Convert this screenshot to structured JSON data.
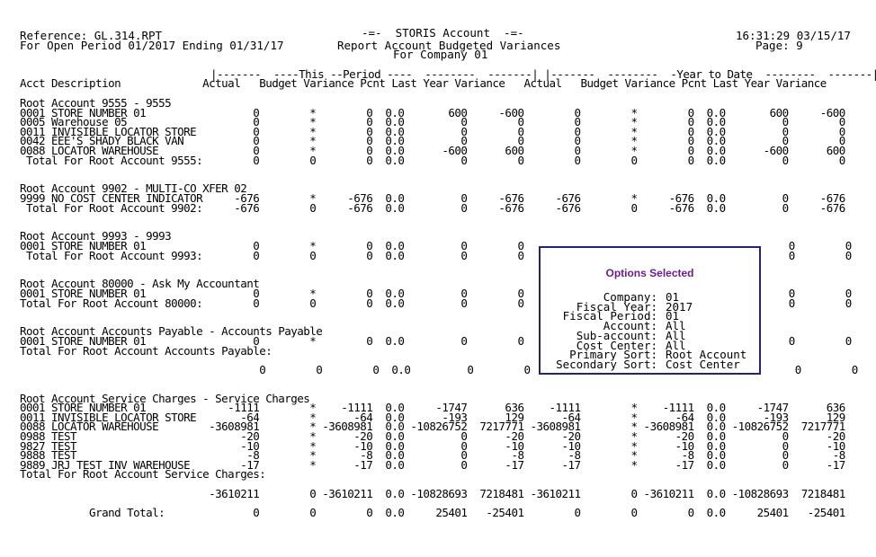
{
  "report": {
    "reference": "Reference: GL.314.RPT",
    "period": "For Open Period 01/2017 Ending 01/31/17",
    "title": "-=-  STORIS Account  -=-",
    "subtitle": "Report Account Budgeted Variances",
    "company": "For Company 01",
    "timestamp": "16:31:29 03/15/17",
    "page": "Page: 9",
    "header_bands": "|-------  ----This --Period ----  --------  -------| |-------  --------  -Year to Date  --------  -------|",
    "column_headers": "Acct Description             Actual   Budget Variance Pcnt Last Year Variance   Actual   Budget Variance Pcnt Last Year Variance",
    "lines": [
      "Root Account 9555 - 9555",
      "0001 STORE NUMBER 01                 0        *        0  0.0       600     -600        0        *        0  0.0       600     -600",
      "0005 Warehouse 05                    0        *        0  0.0         0        0        0        *        0  0.0         0        0",
      "0011 INVISIBLE LOCATOR STORE         0        *        0  0.0         0        0        0        *        0  0.0         0        0",
      "0042 EEE'S SHADY BLACK VAN           0        *        0  0.0         0        0        0        *        0  0.0         0        0",
      "0088 LOCATOR WAREHOUSE               0        *        0  0.0      -600      600        0        *        0  0.0      -600      600",
      " Total For Root Account 9555:        0        0        0  0.0         0        0        0        0        0  0.0         0        0",
      "",
      "",
      "Root Account 9902 - MULTI-CO XFER 02",
      "9999 NO COST CENTER INDICATOR     -676        *     -676  0.0         0     -676     -676        *     -676  0.0         0     -676",
      " Total For Root Account 9902:     -676        0     -676  0.0         0     -676     -676        0     -676  0.0         0     -676",
      "",
      "",
      "Root Account 9993 - 9993",
      "0001 STORE NUMBER 01                 0        *        0  0.0         0        0                                          0        0",
      " Total For Root Account 9993:        0        0        0  0.0         0        0                                          0        0",
      "",
      "",
      "Root Account 80000 - Ask My Accountant",
      "0001 STORE NUMBER 01                 0        *        0  0.0         0        0                                          0        0",
      "Total For Root Account 80000:        0        0        0  0.0         0        0                                          0        0",
      "",
      "",
      "Root Account Accounts Payable - Accounts Payable",
      "0001 STORE NUMBER 01                 0        *        0  0.0         0        0                                          0        0",
      "Total For Root Account Accounts Payable:",
      "",
      "                                      0        0        0  0.0         0        0                                          0        0",
      "",
      "",
      "Root Account Service Charges - Service Charges",
      "0001 STORE NUMBER 01             -1111        *    -1111  0.0     -1747      636    -1111        *    -1111  0.0     -1747      636",
      "0011 INVISIBLE LOCATOR STORE       -64        *      -64  0.0      -193      129      -64        *      -64  0.0      -193      129",
      "0088 LOCATOR WAREHOUSE        -3608981        * -3608981  0.0 -10826752  7217771 -3608981        * -3608981  0.0 -10826752  7217771",
      "0988 TEST                          -20        *      -20  0.0         0      -20      -20        *      -20  0.0         0      -20",
      "9827 TEST                          -10        *      -10  0.0         0      -10      -10        *      -10  0.0         0      -10",
      "9888 TEST                           -8        *       -8  0.0         0       -8       -8        *       -8  0.0         0       -8",
      "9889 JRJ TEST INV WAREHOUSE        -17        *      -17  0.0         0      -17      -17        *      -17  0.0         0      -17",
      "Total For Root Account Service Charges:",
      "",
      "                              -3610211        0 -3610211  0.0 -10828693  7218481 -3610211        0 -3610211  0.0 -10828693  7218481",
      "",
      "           Grand Total:              0        0        0  0.0     25401   -25401        0        0        0  0.0     25401   -25401"
    ]
  },
  "options_popup": {
    "title": "Options Selected",
    "rows": [
      {
        "label": "Company:",
        "value": "01"
      },
      {
        "label": "Fiscal Year:",
        "value": "2017"
      },
      {
        "label": "Fiscal Period:",
        "value": "01"
      },
      {
        "label": "Account:",
        "value": "All"
      },
      {
        "label": "Sub-account:",
        "value": "All"
      },
      {
        "label": "Cost Center:",
        "value": "All"
      },
      {
        "label": "Primary Sort:",
        "value": "Root Account"
      },
      {
        "label": "Secondary Sort:",
        "value": "Cost Center"
      }
    ]
  },
  "colors": {
    "popup_border": "#23236f",
    "popup_title": "#6b1f8c"
  }
}
